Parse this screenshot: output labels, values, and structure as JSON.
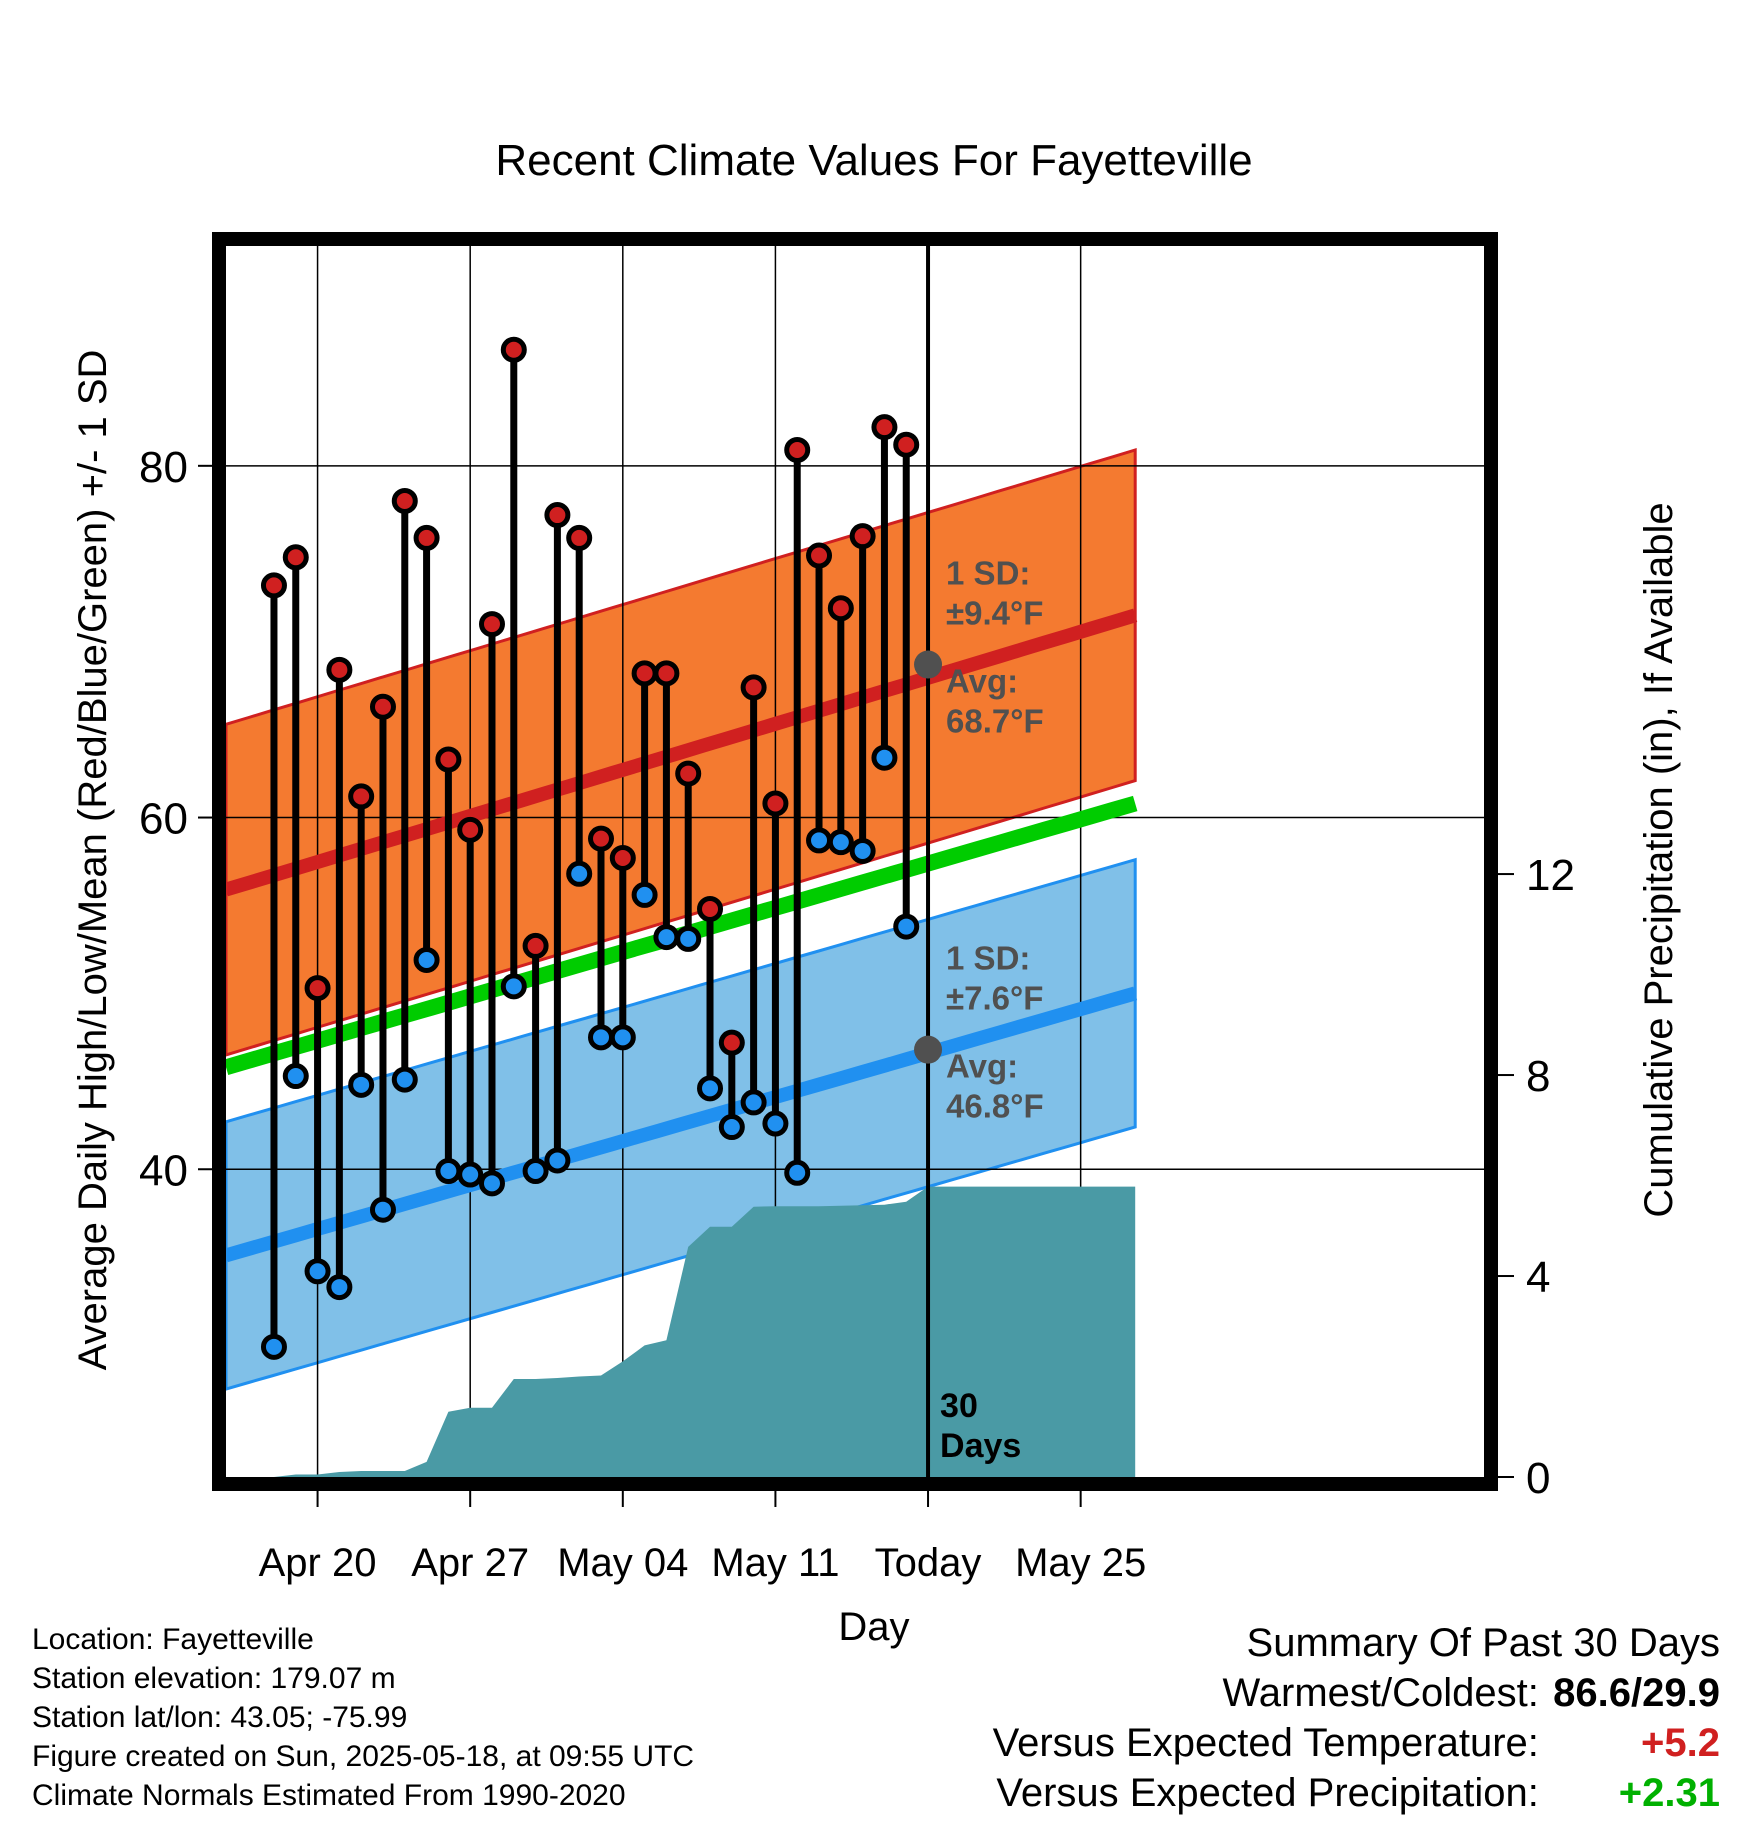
{
  "chart_data": {
    "type": "line",
    "title": "Recent Climate Values For Fayetteville",
    "xlabel": "Day",
    "ylabel": "Average Daily High/Low/Mean (Red/Blue/Green) +/- 1 SD",
    "y2label": "Cumulative Precipitation (in), If Available",
    "ylim": [
      22.5,
      92.5
    ],
    "y2lim": [
      0,
      24.5
    ],
    "yticks": [
      "40",
      "60",
      "80"
    ],
    "y2ticks": [
      "0",
      "4",
      "8",
      "12"
    ],
    "xlim": [
      -3.2,
      54.5
    ],
    "xticks": [
      {
        "day": 1,
        "label": "Apr 20"
      },
      {
        "day": 8,
        "label": "Apr 27"
      },
      {
        "day": 15,
        "label": "May 04"
      },
      {
        "day": 22,
        "label": "May 11"
      },
      {
        "day": 29,
        "label": "Today"
      },
      {
        "day": 36,
        "label": "May 25"
      }
    ],
    "days": [
      -1,
      0,
      1,
      2,
      3,
      4,
      5,
      6,
      7,
      8,
      9,
      10,
      11,
      12,
      13,
      14,
      15,
      16,
      17,
      18,
      19,
      20,
      21,
      22,
      23,
      24,
      25,
      26,
      27,
      28
    ],
    "highs": [
      73.2,
      74.8,
      50.3,
      68.4,
      61.2,
      66.3,
      78.0,
      75.9,
      63.3,
      59.3,
      71.0,
      86.6,
      52.7,
      77.2,
      75.9,
      58.8,
      57.7,
      68.2,
      68.2,
      62.5,
      54.8,
      47.2,
      67.4,
      60.8,
      80.9,
      74.9,
      71.9,
      76.0,
      82.2,
      81.2
    ],
    "lows": [
      29.9,
      45.3,
      34.2,
      33.3,
      44.8,
      37.7,
      45.1,
      51.9,
      39.9,
      39.7,
      39.2,
      50.4,
      39.9,
      40.5,
      56.8,
      47.5,
      47.5,
      55.6,
      53.2,
      53.1,
      44.6,
      42.4,
      43.8,
      42.6,
      39.8,
      58.7,
      58.6,
      58.1,
      63.4,
      53.8
    ],
    "normal_band_start_day": -3.2,
    "normal_band_end_day": 38.5,
    "normal_high": {
      "start": 55.9,
      "end": 71.5,
      "sd": 9.4
    },
    "normal_low": {
      "start": 35.1,
      "end": 50.0,
      "sd": 7.6
    },
    "normal_mean": {
      "start": 45.8,
      "end": 60.8
    },
    "precip_cumulative": [
      [
        -1,
        0
      ],
      [
        0,
        0.05
      ],
      [
        1,
        0.05
      ],
      [
        2,
        0.1
      ],
      [
        3,
        0.12
      ],
      [
        4,
        0.12
      ],
      [
        5,
        0.12
      ],
      [
        6,
        0.3
      ],
      [
        7,
        1.3
      ],
      [
        8,
        1.38
      ],
      [
        9,
        1.38
      ],
      [
        10,
        1.95
      ],
      [
        11,
        1.95
      ],
      [
        12,
        1.97
      ],
      [
        13,
        2.0
      ],
      [
        14,
        2.02
      ],
      [
        15,
        2.3
      ],
      [
        16,
        2.62
      ],
      [
        17,
        2.72
      ],
      [
        18,
        4.58
      ],
      [
        19,
        4.98
      ],
      [
        20,
        4.98
      ],
      [
        21,
        5.38
      ],
      [
        22,
        5.39
      ],
      [
        23,
        5.39
      ],
      [
        24,
        5.39
      ],
      [
        25,
        5.4
      ],
      [
        26,
        5.41
      ],
      [
        27,
        5.42
      ],
      [
        28,
        5.48
      ],
      [
        29,
        5.78
      ],
      [
        38.5,
        5.78
      ]
    ],
    "annotations": {
      "high_sd_label": "1 SD:",
      "high_sd_value": "±9.4°F",
      "high_avg_label": "Avg:",
      "high_avg_value": "68.7°F",
      "high_avg": 68.7,
      "low_sd_label": "1 SD:",
      "low_sd_value": "±7.6°F",
      "low_avg_label": "Avg:",
      "low_avg_value": "46.8°F",
      "low_avg": 46.8,
      "today_num": "30",
      "today_word": "Days"
    },
    "grid": true,
    "colors": {
      "high_band": "#f47a30",
      "high_line": "#d02020",
      "low_band": "#80c0e8",
      "low_line": "#2090f0",
      "mean_line": "#00cc00",
      "precip": "#4a9aa5",
      "high_dot": "#d02020",
      "low_dot": "#2090f0",
      "annotation_text": "#505050"
    }
  },
  "footer": {
    "location": "Location: Fayetteville",
    "elevation": "Station elevation: 179.07 m",
    "latlon": "Station lat/lon: 43.05; -75.99",
    "created": "Figure created on Sun, 2025-05-18, at 09:55 UTC",
    "normals": "Climate Normals Estimated From 1990-2020"
  },
  "summary": {
    "title": "Summary Of Past 30 Days",
    "warm_cold_label": "Warmest/Coldest:",
    "warm": "86.6",
    "cold": "29.9",
    "temp_label": "Versus Expected Temperature:",
    "temp_value": "+5.2",
    "precip_label": "Versus Expected Precipitation:",
    "precip_value": "+2.31",
    "temp_color": "#d02020",
    "precip_color": "#00b000"
  }
}
